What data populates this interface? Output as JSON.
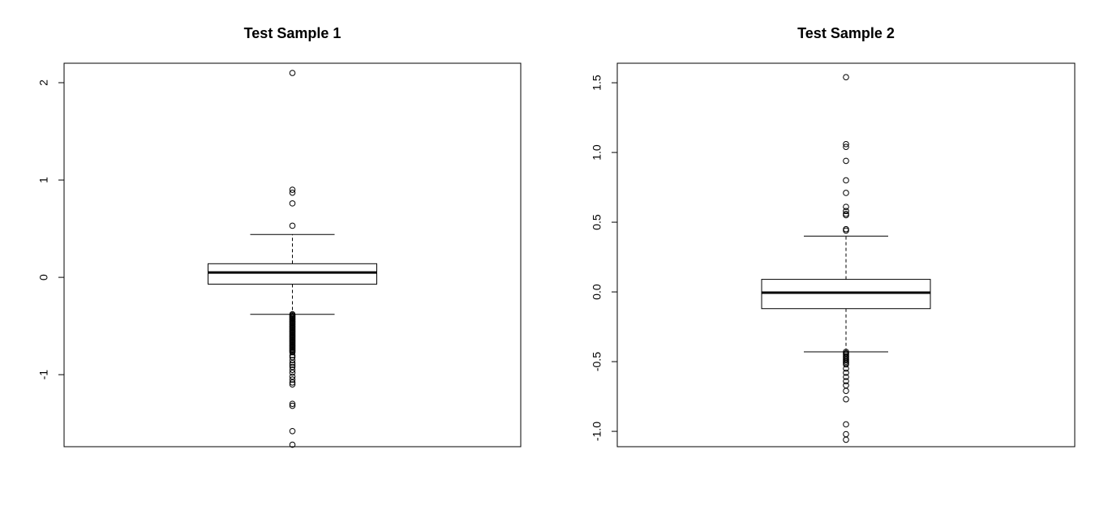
{
  "chart_data": [
    {
      "type": "boxplot",
      "title": "Test Sample 1",
      "xlabel": "",
      "ylabel": "",
      "ylim": [
        -1.74,
        2.2
      ],
      "yticks": [
        -1,
        0,
        1,
        2
      ],
      "ytick_labels": [
        "-1",
        "0",
        "1",
        "2"
      ],
      "grid": false,
      "box": {
        "q1": -0.07,
        "median": 0.05,
        "q3": 0.14,
        "whisker_low": -0.38,
        "whisker_high": 0.44
      },
      "outliers_high": [
        2.1,
        0.9,
        0.87,
        0.76,
        0.53
      ],
      "outliers_low": [
        -0.38,
        -0.39,
        -0.4,
        -0.41,
        -0.42,
        -0.43,
        -0.44,
        -0.45,
        -0.46,
        -0.47,
        -0.48,
        -0.49,
        -0.5,
        -0.51,
        -0.52,
        -0.53,
        -0.54,
        -0.55,
        -0.56,
        -0.57,
        -0.58,
        -0.59,
        -0.6,
        -0.61,
        -0.62,
        -0.63,
        -0.64,
        -0.65,
        -0.66,
        -0.67,
        -0.68,
        -0.69,
        -0.7,
        -0.71,
        -0.72,
        -0.73,
        -0.74,
        -0.75,
        -0.76,
        -0.77,
        -0.8,
        -0.82,
        -0.85,
        -0.88,
        -0.9,
        -0.92,
        -0.95,
        -0.98,
        -1.02,
        -1.05,
        -1.08,
        -1.1,
        -1.3,
        -1.32,
        -1.58,
        -1.72
      ]
    },
    {
      "type": "boxplot",
      "title": "Test Sample 2",
      "xlabel": "",
      "ylabel": "",
      "ylim": [
        -1.11,
        1.64
      ],
      "yticks": [
        -1.0,
        -0.5,
        0.0,
        0.5,
        1.0,
        1.5
      ],
      "ytick_labels": [
        "-1.0",
        "-0.5",
        "0.0",
        "0.5",
        "1.0",
        "1.5"
      ],
      "grid": false,
      "box": {
        "q1": -0.12,
        "median": -0.005,
        "q3": 0.09,
        "whisker_low": -0.43,
        "whisker_high": 0.4
      },
      "outliers_high": [
        1.54,
        1.06,
        1.04,
        0.94,
        0.8,
        0.71,
        0.61,
        0.58,
        0.56,
        0.55,
        0.45,
        0.44
      ],
      "outliers_low": [
        -0.43,
        -0.44,
        -0.45,
        -0.46,
        -0.47,
        -0.48,
        -0.49,
        -0.5,
        -0.51,
        -0.52,
        -0.55,
        -0.58,
        -0.61,
        -0.64,
        -0.67,
        -0.71,
        -0.77,
        -0.95,
        -1.02,
        -1.06
      ]
    }
  ]
}
